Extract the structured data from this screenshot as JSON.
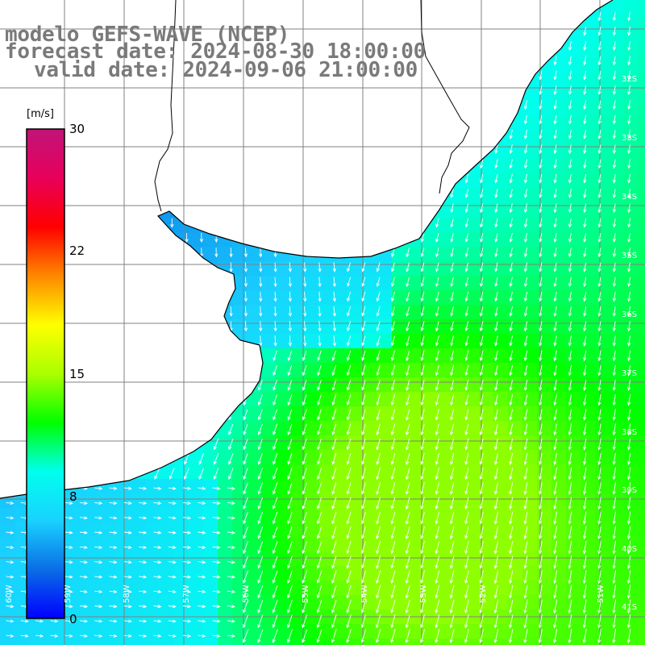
{
  "title": {
    "line1": "modelo GEFS-WAVE (NCEP)",
    "line2": "forecast date: 2024-08-30 18:00:00",
    "line3": "valid date: 2024-09-06 21:00:00"
  },
  "colorbar": {
    "unit": "[m/s]",
    "min": 0,
    "max": 30,
    "ticks": [
      "30",
      "22",
      "15",
      "8",
      "0"
    ],
    "colors": [
      "#0000ff",
      "#0a6ee6",
      "#19d2ff",
      "#00ffee",
      "#00ff00",
      "#aaff00",
      "#ffff00",
      "#ff8800",
      "#ff0000",
      "#e8005a",
      "#c0147a"
    ]
  },
  "map": {
    "land_color": "#ffffff",
    "grid_color": "#808080",
    "arrow_color": "#ffffff",
    "lat_labels": [
      "32S",
      "33S",
      "34S",
      "35S",
      "36S",
      "37S",
      "38S",
      "39S",
      "40S",
      "41S"
    ],
    "lon_labels": [
      "60W",
      "59W",
      "58W",
      "57W",
      "56W",
      "55W",
      "54W",
      "53W",
      "52W",
      "51W"
    ]
  }
}
